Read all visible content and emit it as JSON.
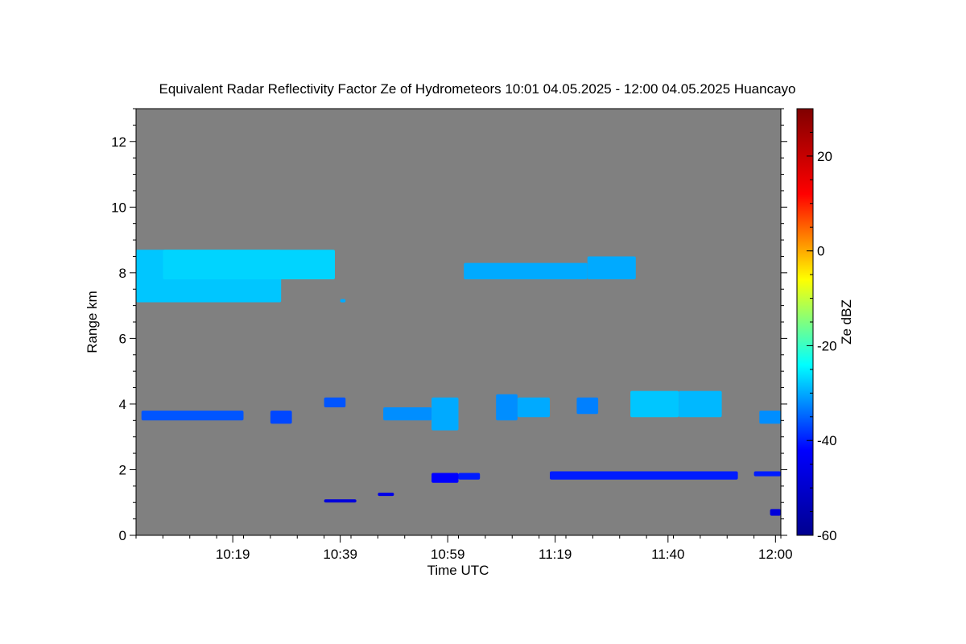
{
  "chart_data": {
    "type": "heatmap",
    "title": "Equivalent Radar Reflectivity Factor Ze of Hydrometeors   10:01 04.05.2025 - 12:00 04.05.2025 Huancayo",
    "xlabel": "Time UTC",
    "ylabel": "Range km",
    "x_range": [
      "10:01",
      "12:01"
    ],
    "x_tick_labels": [
      "10:19",
      "10:39",
      "10:59",
      "11:19",
      "11:40",
      "12:00"
    ],
    "x_tick_minutes_after_start": [
      18,
      38,
      58,
      78,
      99,
      119
    ],
    "ylim": [
      0,
      13
    ],
    "y_ticks": [
      0,
      2,
      4,
      6,
      8,
      10,
      12
    ],
    "colorbar": {
      "label": "Ze dBZ",
      "range": [
        -60,
        30
      ],
      "ticks": [
        -60,
        -40,
        -20,
        0,
        20
      ],
      "colormap": [
        "#00008f",
        "#0000ff",
        "#00ffff",
        "#ffff00",
        "#ff0000",
        "#800000"
      ]
    },
    "background_color": "#808080",
    "echoes": [
      {
        "t_start": "10:01",
        "t_end": "10:27",
        "range_km": [
          7.1,
          8.7
        ],
        "ze_dbz": -28
      },
      {
        "t_start": "10:06",
        "t_end": "10:37",
        "range_km": [
          7.8,
          8.7
        ],
        "ze_dbz": -27
      },
      {
        "t_start": "10:39",
        "t_end": "10:39",
        "range_km": [
          7.1,
          7.2
        ],
        "ze_dbz": -30
      },
      {
        "t_start": "11:02",
        "t_end": "11:24",
        "range_km": [
          7.8,
          8.3
        ],
        "ze_dbz": -30
      },
      {
        "t_start": "11:25",
        "t_end": "11:33",
        "range_km": [
          7.8,
          8.5
        ],
        "ze_dbz": -30
      },
      {
        "t_start": "10:02",
        "t_end": "10:20",
        "range_km": [
          3.5,
          3.8
        ],
        "ze_dbz": -36
      },
      {
        "t_start": "10:26",
        "t_end": "10:29",
        "range_km": [
          3.4,
          3.8
        ],
        "ze_dbz": -37
      },
      {
        "t_start": "10:36",
        "t_end": "10:39",
        "range_km": [
          3.9,
          4.2
        ],
        "ze_dbz": -36
      },
      {
        "t_start": "10:47",
        "t_end": "10:55",
        "range_km": [
          3.5,
          3.9
        ],
        "ze_dbz": -32
      },
      {
        "t_start": "10:56",
        "t_end": "11:00",
        "range_km": [
          3.2,
          4.2
        ],
        "ze_dbz": -30
      },
      {
        "t_start": "11:08",
        "t_end": "11:11",
        "range_km": [
          3.5,
          4.3
        ],
        "ze_dbz": -32
      },
      {
        "t_start": "11:12",
        "t_end": "11:17",
        "range_km": [
          3.6,
          4.2
        ],
        "ze_dbz": -30
      },
      {
        "t_start": "11:23",
        "t_end": "11:26",
        "range_km": [
          3.7,
          4.2
        ],
        "ze_dbz": -33
      },
      {
        "t_start": "11:33",
        "t_end": "11:41",
        "range_km": [
          3.6,
          4.4
        ],
        "ze_dbz": -28
      },
      {
        "t_start": "11:42",
        "t_end": "11:49",
        "range_km": [
          3.6,
          4.4
        ],
        "ze_dbz": -29
      },
      {
        "t_start": "11:57",
        "t_end": "12:00",
        "range_km": [
          3.4,
          3.8
        ],
        "ze_dbz": -32
      },
      {
        "t_start": "10:36",
        "t_end": "10:41",
        "range_km": [
          1.0,
          1.1
        ],
        "ze_dbz": -48
      },
      {
        "t_start": "10:46",
        "t_end": "10:48",
        "range_km": [
          1.2,
          1.3
        ],
        "ze_dbz": -46
      },
      {
        "t_start": "10:56",
        "t_end": "11:00",
        "range_km": [
          1.6,
          1.9
        ],
        "ze_dbz": -42
      },
      {
        "t_start": "11:01",
        "t_end": "11:04",
        "range_km": [
          1.7,
          1.9
        ],
        "ze_dbz": -40
      },
      {
        "t_start": "11:18",
        "t_end": "11:52",
        "range_km": [
          1.7,
          1.95
        ],
        "ze_dbz": -40
      },
      {
        "t_start": "11:56",
        "t_end": "12:00",
        "range_km": [
          1.8,
          1.95
        ],
        "ze_dbz": -40
      },
      {
        "t_start": "11:59",
        "t_end": "12:00",
        "range_km": [
          0.6,
          0.8
        ],
        "ze_dbz": -48
      }
    ]
  }
}
